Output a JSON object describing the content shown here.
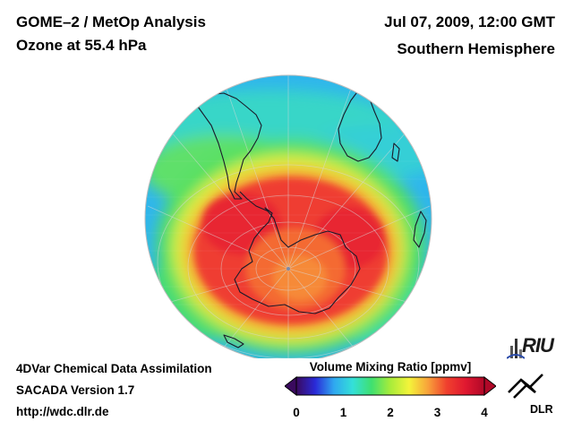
{
  "header": {
    "title_line1": "GOME–2 / MetOp Analysis",
    "title_line2": "Ozone at 55.4 hPa",
    "date": "Jul 07, 2009, 12:00 GMT",
    "region": "Southern Hemisphere"
  },
  "footer": {
    "line1": "4DVar Chemical Data Assimilation",
    "line2": "SACADA Version 1.7",
    "line3": "http://wdc.dlr.de"
  },
  "colorbar": {
    "title": "Volume Mixing Ratio [ppmv]",
    "ticks": [
      "0",
      "1",
      "2",
      "3",
      "4"
    ],
    "range": [
      0,
      4
    ],
    "colors": [
      "#3a0a5e",
      "#2a2ad8",
      "#2fa8f0",
      "#34e0d8",
      "#3fe070",
      "#a8ec3a",
      "#f4f43a",
      "#f8a23a",
      "#f0402e",
      "#e01830",
      "#b00828"
    ]
  },
  "map": {
    "projection": "orthographic",
    "hemisphere": "Southern Hemisphere",
    "ocean_color": "#3aa8f0",
    "ozone_maximum_color": "#f0382e"
  },
  "logos": {
    "riu": "RIU",
    "dlr": "DLR"
  }
}
